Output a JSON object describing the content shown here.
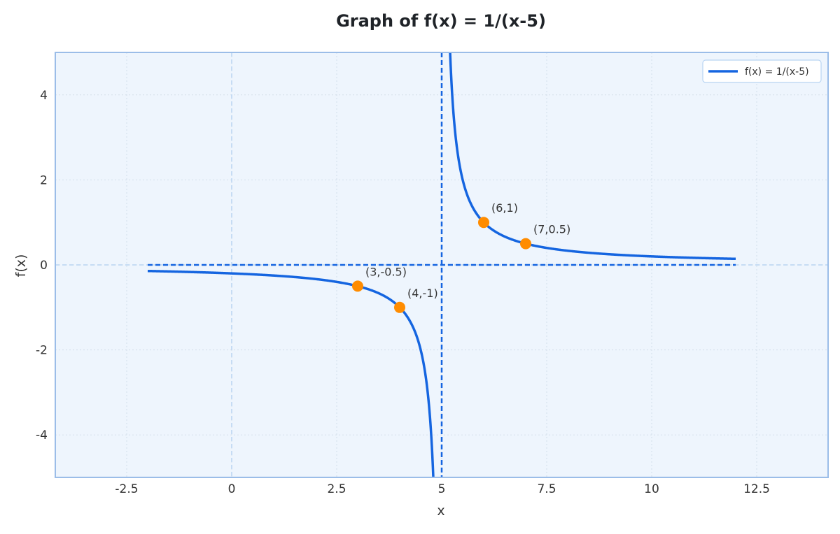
{
  "chart_data": {
    "type": "line",
    "title": "Graph of f(x) = 1/(x-5)",
    "xlabel": "x",
    "ylabel": "f(x)",
    "xlim": [
      -4.2,
      14.2
    ],
    "ylim": [
      -5,
      5
    ],
    "xticks": [
      -2.5,
      0,
      2.5,
      5,
      7.5,
      10,
      12.5
    ],
    "xtick_labels": [
      "-2.5",
      "0",
      "2.5",
      "5",
      "7.5",
      "10",
      "12.5"
    ],
    "yticks": [
      -4,
      -2,
      0,
      2,
      4
    ],
    "ytick_labels": [
      "-4",
      "-2",
      "0",
      "2",
      "4"
    ],
    "grid": true,
    "legend_position": "top-right",
    "series": [
      {
        "name": "f(x) = 1/(x-5)",
        "function": "1/(x-5)",
        "domain": [
          -2,
          12
        ],
        "color": "#1565e0"
      }
    ],
    "asymptotes": {
      "vertical_x": 5,
      "horizontal_y": 0,
      "horizontal_range": [
        -2,
        12
      ]
    },
    "points": [
      {
        "x": 3,
        "y": -0.5,
        "label": "(3,-0.5)"
      },
      {
        "x": 4,
        "y": -1,
        "label": "(4,-1)"
      },
      {
        "x": 6,
        "y": 1,
        "label": "(6,1)"
      },
      {
        "x": 7,
        "y": 0.5,
        "label": "(7,0.5)"
      }
    ],
    "colors": {
      "curve": "#1565e0",
      "asymptote": "#1565e0",
      "points": "#ff8c00",
      "plot_background": "#eef5fd",
      "frame": "#9bbde8",
      "grid": "#d3deea",
      "zero_lines": "#b8d4f2"
    }
  }
}
